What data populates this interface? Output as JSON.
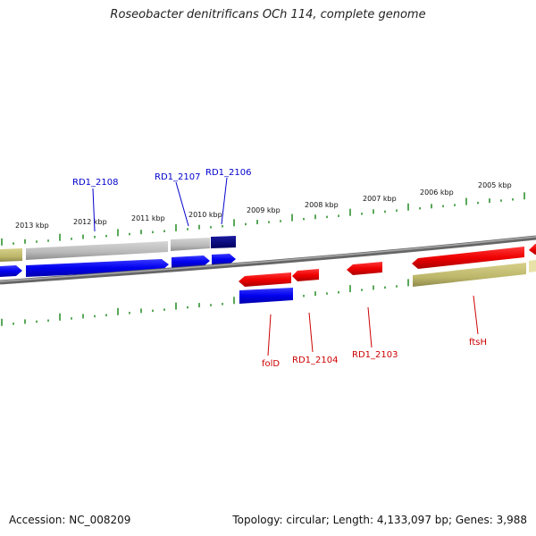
{
  "header": {
    "title": "Roseobacter denitrificans OCh 114, complete genome"
  },
  "footer": {
    "accession": "Accession: NC_008209",
    "topology": "Topology: circular; Length: 4,133,097 bp; Genes: 3,988"
  },
  "colors": {
    "backbone": "#888888",
    "forward_gene": "#0000ee",
    "reverse_gene": "#ee0000",
    "forward_label": "#0000cc",
    "reverse_label": "#cc0000",
    "gray_feature": "#b8b8b8",
    "navy_feature": "#000080",
    "khaki_feature": "#bdb76b",
    "tick": "#228b22"
  },
  "scale": {
    "tick_labels": [
      "2013 kbp",
      "2012 kbp",
      "2011 kbp",
      "2010 kbp",
      "2009 kbp",
      "2008 kbp",
      "2007 kbp",
      "2006 kbp",
      "2005 kbp"
    ]
  },
  "gene_labels": {
    "forward": [
      "RD1_2108",
      "RD1_2107",
      "RD1_2106"
    ],
    "reverse": [
      "folD",
      "RD1_2104",
      "RD1_2103",
      "ftsH"
    ]
  }
}
